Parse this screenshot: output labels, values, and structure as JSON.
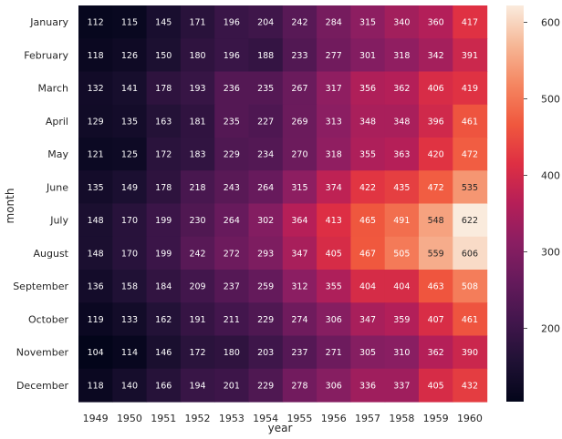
{
  "chart_data": {
    "type": "heatmap",
    "title": "",
    "xlabel": "year",
    "ylabel": "month",
    "x": [
      "1949",
      "1950",
      "1951",
      "1952",
      "1953",
      "1954",
      "1955",
      "1956",
      "1957",
      "1958",
      "1959",
      "1960"
    ],
    "y": [
      "January",
      "February",
      "March",
      "April",
      "May",
      "June",
      "July",
      "August",
      "September",
      "October",
      "November",
      "December"
    ],
    "values": [
      [
        112,
        115,
        145,
        171,
        196,
        204,
        242,
        284,
        315,
        340,
        360,
        417
      ],
      [
        118,
        126,
        150,
        180,
        196,
        188,
        233,
        277,
        301,
        318,
        342,
        391
      ],
      [
        132,
        141,
        178,
        193,
        236,
        235,
        267,
        317,
        356,
        362,
        406,
        419
      ],
      [
        129,
        135,
        163,
        181,
        235,
        227,
        269,
        313,
        348,
        348,
        396,
        461
      ],
      [
        121,
        125,
        172,
        183,
        229,
        234,
        270,
        318,
        355,
        363,
        420,
        472
      ],
      [
        135,
        149,
        178,
        218,
        243,
        264,
        315,
        374,
        422,
        435,
        472,
        535
      ],
      [
        148,
        170,
        199,
        230,
        264,
        302,
        364,
        413,
        465,
        491,
        548,
        622
      ],
      [
        148,
        170,
        199,
        242,
        272,
        293,
        347,
        405,
        467,
        505,
        559,
        606
      ],
      [
        136,
        158,
        184,
        209,
        237,
        259,
        312,
        355,
        404,
        404,
        463,
        508
      ],
      [
        119,
        133,
        162,
        191,
        211,
        229,
        274,
        306,
        347,
        359,
        407,
        461
      ],
      [
        104,
        114,
        146,
        172,
        180,
        203,
        237,
        271,
        305,
        310,
        362,
        390
      ],
      [
        118,
        140,
        166,
        194,
        201,
        229,
        278,
        306,
        336,
        337,
        405,
        432
      ]
    ],
    "colorbar": {
      "colormap": "rocket",
      "range": [
        104,
        622
      ],
      "ticks": [
        200,
        300,
        400,
        500,
        600
      ]
    },
    "annotations": "cell values shown as integers"
  }
}
